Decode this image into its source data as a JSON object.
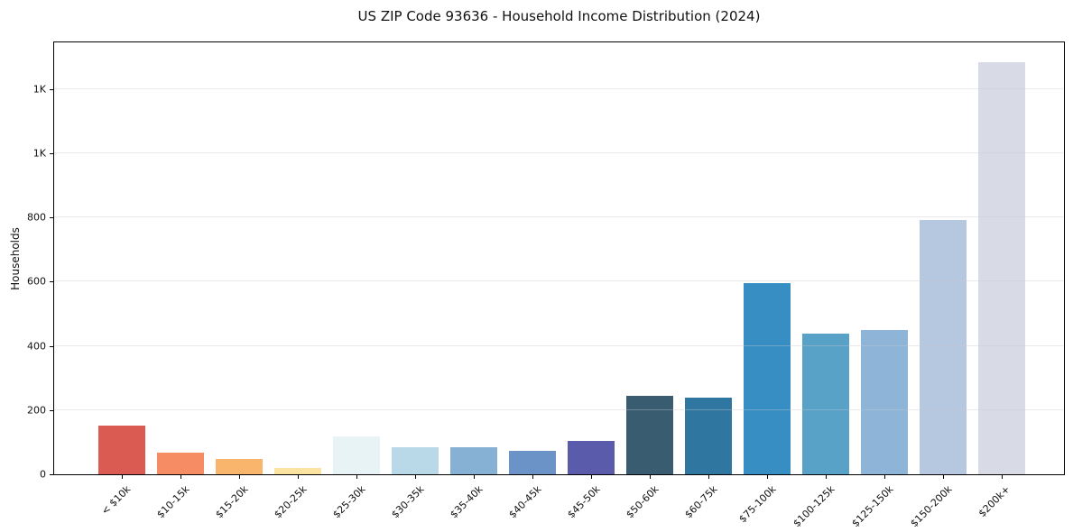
{
  "title": "US ZIP Code 93636 - Household Income Distribution (2024)",
  "chart_data": {
    "type": "bar",
    "title": "US ZIP Code 93636 - Household Income Distribution (2024)",
    "xlabel": "",
    "ylabel": "Households",
    "categories": [
      "< $10k",
      "$10-15k",
      "$15-20k",
      "$20-25k",
      "$25-30k",
      "$30-35k",
      "$35-40k",
      "$40-45k",
      "$45-50k",
      "$50-60k",
      "$60-75k",
      "$75-100k",
      "$100-125k",
      "$125-150k",
      "$150-200k",
      "$200k+"
    ],
    "values": [
      151,
      68,
      48,
      20,
      117,
      83,
      85,
      74,
      105,
      244,
      238,
      595,
      437,
      449,
      791,
      1284
    ],
    "bar_colors": [
      "#d95b52",
      "#f68c63",
      "#fab56d",
      "#fce3a1",
      "#e8f3f6",
      "#b9d9e9",
      "#86b1d4",
      "#6b93c7",
      "#5a5cab",
      "#3a5c71",
      "#2f76a0",
      "#368ec3",
      "#58a2c8",
      "#8eb5d8",
      "#b6c7e0",
      "#d8dae6"
    ],
    "ylim": [
      0,
      1345
    ],
    "yticks": [
      0,
      200,
      400,
      600,
      800,
      1000,
      1200
    ],
    "ytick_labels": [
      "0",
      "200",
      "400",
      "600",
      "800",
      "1K",
      "1K"
    ],
    "grid": "horizontal",
    "legend_position": "none"
  },
  "colors": {
    "background": "#ffffff",
    "spine": "#000000",
    "gridline": "#ececec",
    "text": "#111111"
  }
}
